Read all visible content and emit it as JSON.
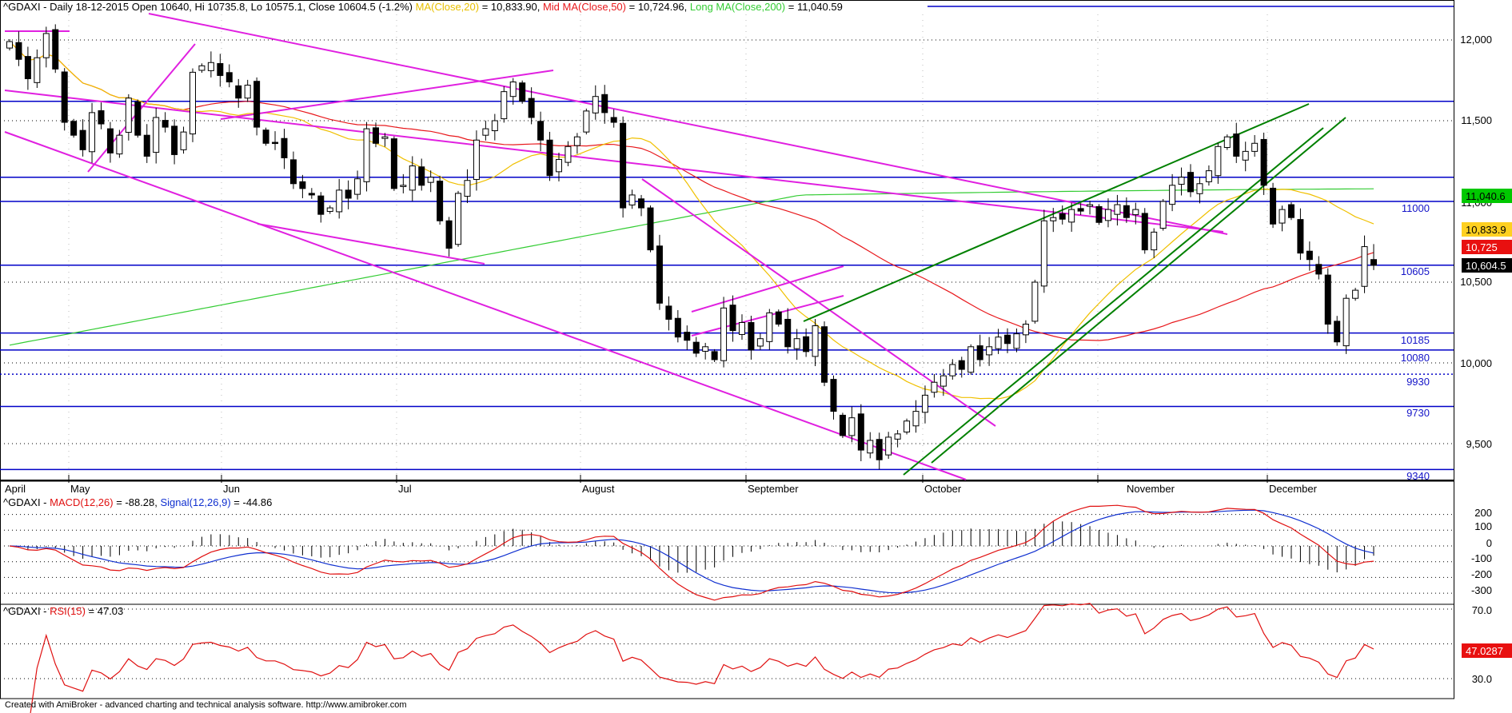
{
  "main": {
    "header": {
      "symbol": "^GDAXI",
      "info": " - Daily 18-12-2015 Open 10640, Hi 10735.8, Lo 10575.1, Close 10604.5 (-1.2%)",
      "ma20": "MA(Close,20)",
      "ma20_value": " = 10,833.90,",
      "ma50": "Mid MA(Close,50)",
      "ma50_value": " = 10,724.96,",
      "ma200": "Long MA(Close,200)",
      "ma200_value": " = 11,040.59"
    },
    "y_ticks": [
      "12,000",
      "11,500",
      "11,000",
      "10,500",
      "10,000",
      "9,500"
    ],
    "level_labels": [
      "11000",
      "10605",
      "10185",
      "10080",
      "9930",
      "9730",
      "9340"
    ],
    "months": [
      "April",
      "May",
      "Jun",
      "Jul",
      "August",
      "September",
      "October",
      "November",
      "December"
    ],
    "price_tags": {
      "ma200": "11,040.6",
      "ma20": "10,833.9",
      "ma50": "10,725",
      "close": "10,604.5"
    }
  },
  "macd": {
    "header": {
      "symbol": "^GDAXI",
      "sep": " - ",
      "macd": "MACD(12,26)",
      "macd_value": " = -88.28, ",
      "signal": "Signal(12,26,9)",
      "signal_value": " = -44.86"
    },
    "y_ticks": [
      "200",
      "100",
      "0",
      "-100",
      "-200",
      "-300"
    ]
  },
  "rsi": {
    "header": {
      "symbol": "^GDAXI",
      "sep": " - ",
      "rsi": "RSI(15)",
      "rsi_value": " = 47.03"
    },
    "y_ticks": [
      "70.0",
      "30.0"
    ],
    "tag": "47.0287"
  },
  "footer": "Created with AmiBroker - advanced charting and technical analysis software. http://www.amibroker.com",
  "colors": {
    "ma20": "#f0c000",
    "ma50": "#e8181c",
    "ma200": "#33cc33",
    "support": "#0000c8",
    "trend_magenta": "#e020e0",
    "trend_green": "#008000",
    "macd": "#e01010",
    "signal": "#1030d0",
    "rsi": "#e01010"
  },
  "chart_data": [
    {
      "type": "candlestick",
      "title": "^GDAXI - Daily 18-12-2015",
      "ylabel": "",
      "ylim": [
        9330,
        12210
      ],
      "months": [
        "April",
        "May",
        "Jun",
        "Jul",
        "August",
        "September",
        "October",
        "November",
        "December"
      ],
      "horizontal_levels": [
        11620,
        11150,
        11000,
        10605,
        10185,
        10080,
        9930,
        9730,
        9340
      ],
      "last_bar": {
        "open": 10640,
        "high": 10735.8,
        "low": 10575.1,
        "close": 10604.5
      },
      "ma20_last": 10833.9,
      "ma50_last": 10724.96,
      "ma200_last": 11040.59,
      "closes": [
        11990,
        11880,
        11760,
        11890,
        12040,
        11820,
        11490,
        11410,
        11320,
        11550,
        11480,
        11300,
        11410,
        11640,
        11410,
        11280,
        11520,
        11460,
        11290,
        11430,
        11800,
        11840,
        11860,
        11780,
        11740,
        11640,
        11720,
        11460,
        11360,
        11360,
        11270,
        11110,
        11080,
        11040,
        10920,
        10960,
        11070,
        11020,
        11140,
        11450,
        11360,
        11400,
        11080,
        11100,
        11220,
        11100,
        11150,
        10880,
        10710,
        11050,
        11130,
        11380,
        11450,
        11500,
        11680,
        11740,
        11620,
        11520,
        11380,
        11160,
        11260,
        11340,
        11400,
        11560,
        11650,
        11550,
        11490,
        10960,
        11040,
        10960,
        10700,
        10370,
        10270,
        10160,
        10140,
        10060,
        10100,
        10020,
        10340,
        10200,
        10250,
        10080,
        10150,
        10310,
        10240,
        10100,
        10150,
        10070,
        10230,
        9880,
        9700,
        9550,
        9660,
        9460,
        9520,
        9400,
        9540,
        9560,
        9640,
        9700,
        9800,
        9880,
        9920,
        9990,
        9960,
        10100,
        10020,
        10100,
        10160,
        10120,
        10180,
        10240,
        10500,
        10880,
        10900,
        10890,
        10950,
        10940,
        10980,
        10870,
        10950,
        10980,
        10900,
        10950,
        10700,
        10810,
        11000,
        11100,
        11150,
        11060,
        11110,
        11190,
        11340,
        11400,
        11280,
        11310,
        11360,
        11100,
        10860,
        10950,
        10900,
        10680,
        10640,
        10550,
        10240,
        10130,
        10400,
        10450,
        10720,
        10604.5
      ],
      "rsi_last": 47.03,
      "rsi_range": [
        30,
        70
      ]
    },
    {
      "type": "line",
      "title": "MACD(12,26)",
      "ylim": [
        -330,
        260
      ],
      "macd_last": -88.28,
      "signal_last": -44.86
    }
  ]
}
